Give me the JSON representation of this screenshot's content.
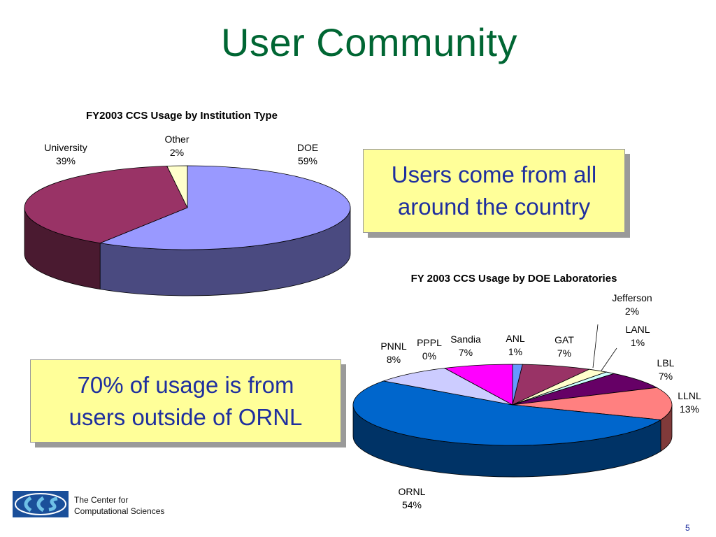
{
  "slide": {
    "title": "User Community",
    "page_number": "5",
    "callouts": [
      "Users come from all\naround the country",
      "70% of usage is from\nusers outside of ORNL"
    ],
    "footer": {
      "org_line1": "The Center for",
      "org_line2": "Computational Sciences"
    }
  },
  "chart_data": [
    {
      "type": "pie",
      "title": "FY2003 CCS Usage by Institution Type",
      "slices": [
        {
          "label": "DOE",
          "percent_label": "59%",
          "value": 59,
          "color": "#9999ff",
          "side": "#4a4a80"
        },
        {
          "label": "University",
          "percent_label": "39%",
          "value": 39,
          "color": "#993366",
          "side": "#4a1a30"
        },
        {
          "label": "Other",
          "percent_label": "2%",
          "value": 2,
          "color": "#ffffcc",
          "side": "#80806a"
        }
      ]
    },
    {
      "type": "pie",
      "title": "FY 2003 CCS Usage by DOE Laboratories",
      "slices": [
        {
          "label": "ANL",
          "percent_label": "1%",
          "value": 1,
          "color": "#6699ff",
          "side": "#33508a"
        },
        {
          "label": "GAT",
          "percent_label": "7%",
          "value": 7,
          "color": "#993366",
          "side": "#4a1a30"
        },
        {
          "label": "Jefferson",
          "percent_label": "2%",
          "value": 2,
          "color": "#ffffcc",
          "side": "#80806a"
        },
        {
          "label": "LANL",
          "percent_label": "1%",
          "value": 1,
          "color": "#ccffff",
          "side": "#668080"
        },
        {
          "label": "LBL",
          "percent_label": "7%",
          "value": 7,
          "color": "#660066",
          "side": "#330033"
        },
        {
          "label": "LLNL",
          "percent_label": "13%",
          "value": 13,
          "color": "#ff8080",
          "side": "#803a3a"
        },
        {
          "label": "ORNL",
          "percent_label": "54%",
          "value": 54,
          "color": "#0066cc",
          "side": "#003366"
        },
        {
          "label": "PNNL",
          "percent_label": "8%",
          "value": 8,
          "color": "#ccccff",
          "side": "#66667a"
        },
        {
          "label": "PPPL",
          "percent_label": "0%",
          "value": 0,
          "color": "#000080",
          "side": "#000040"
        },
        {
          "label": "Sandia",
          "percent_label": "7%",
          "value": 7,
          "color": "#ff00ff",
          "side": "#800080"
        }
      ]
    }
  ]
}
